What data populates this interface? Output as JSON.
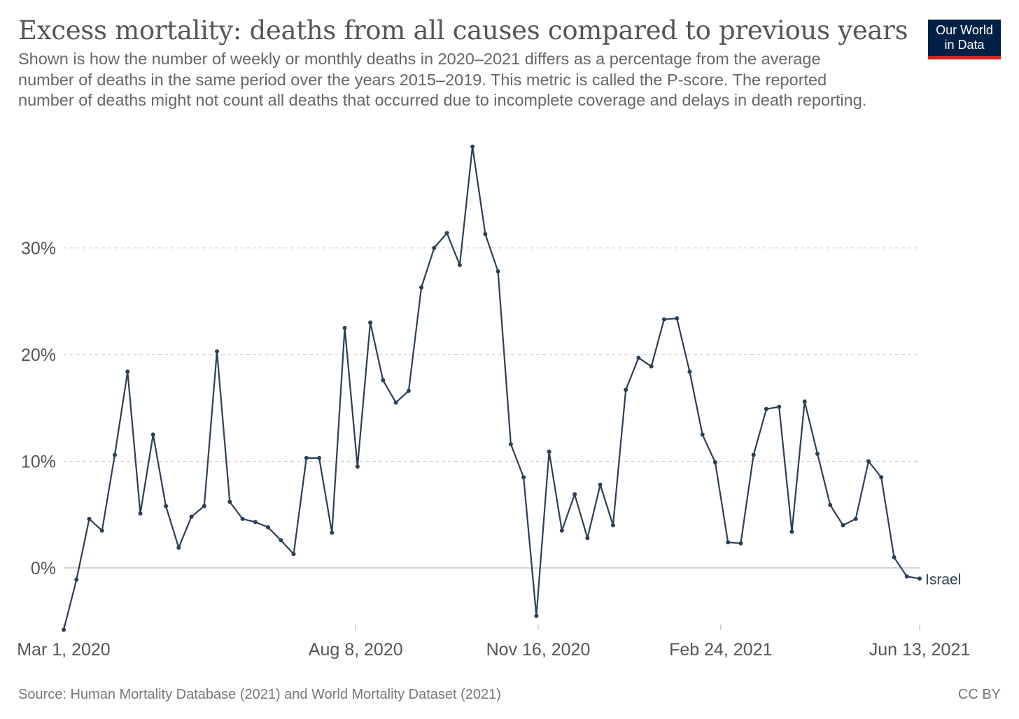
{
  "header": {
    "title": "Excess mortality: deaths from all causes compared to previous years",
    "subtitle": "Shown is how the number of weekly or monthly deaths in 2020–2021 differs as a percentage from the average number of deaths in the same period over the years 2015–2019. This metric is called the P-score. The reported number of deaths might not count all deaths that occurred due to incomplete coverage and delays in death reporting."
  },
  "logo": {
    "line1": "Our World",
    "line2": "in Data"
  },
  "footer": {
    "source": "Source: Human Mortality Database (2021) and World Mortality Dataset (2021)",
    "license": "CC BY"
  },
  "colors": {
    "series": "#2d3f55",
    "grid": "#cccccc",
    "axis": "#bbbbbb",
    "text": "#555555"
  },
  "chart_data": {
    "type": "line",
    "title": "Excess mortality: deaths from all causes compared to previous years",
    "ylim": [
      -5.8,
      40
    ],
    "y_ticks": [
      0,
      10,
      20,
      30
    ],
    "y_tick_labels": [
      "0%",
      "10%",
      "20%",
      "30%"
    ],
    "grid": true,
    "x_ticks": [
      {
        "date": "2020-03-01",
        "label": "Mar 1, 2020"
      },
      {
        "date": "2020-08-08",
        "label": "Aug 8, 2020"
      },
      {
        "date": "2020-11-16",
        "label": "Nov 16, 2020"
      },
      {
        "date": "2021-02-24",
        "label": "Feb 24, 2021"
      },
      {
        "date": "2021-06-13",
        "label": "Jun 13, 2021"
      }
    ],
    "x_range": [
      "2020-03-01",
      "2021-06-13"
    ],
    "series": [
      {
        "name": "Israel",
        "start_date": "2020-03-01",
        "interval_days": 7,
        "values": [
          -5.8,
          -1.1,
          4.6,
          3.5,
          10.6,
          18.4,
          5.1,
          12.5,
          5.8,
          1.9,
          4.8,
          5.8,
          20.3,
          6.2,
          4.6,
          4.3,
          3.8,
          2.6,
          1.3,
          10.3,
          10.3,
          3.3,
          22.5,
          9.5,
          23.0,
          17.6,
          15.5,
          16.6,
          26.3,
          30.0,
          31.4,
          28.4,
          39.5,
          31.3,
          27.8,
          11.6,
          8.5,
          -4.5,
          10.9,
          3.5,
          6.9,
          2.8,
          7.8,
          4.0,
          16.7,
          19.7,
          18.9,
          23.3,
          23.4,
          18.4,
          12.5,
          9.9,
          2.4,
          2.3,
          10.6,
          14.9,
          15.1,
          3.4,
          15.6,
          10.7,
          5.9,
          4.0,
          4.6,
          10.0,
          8.5,
          1.0,
          -0.8,
          -1.0
        ]
      }
    ]
  }
}
